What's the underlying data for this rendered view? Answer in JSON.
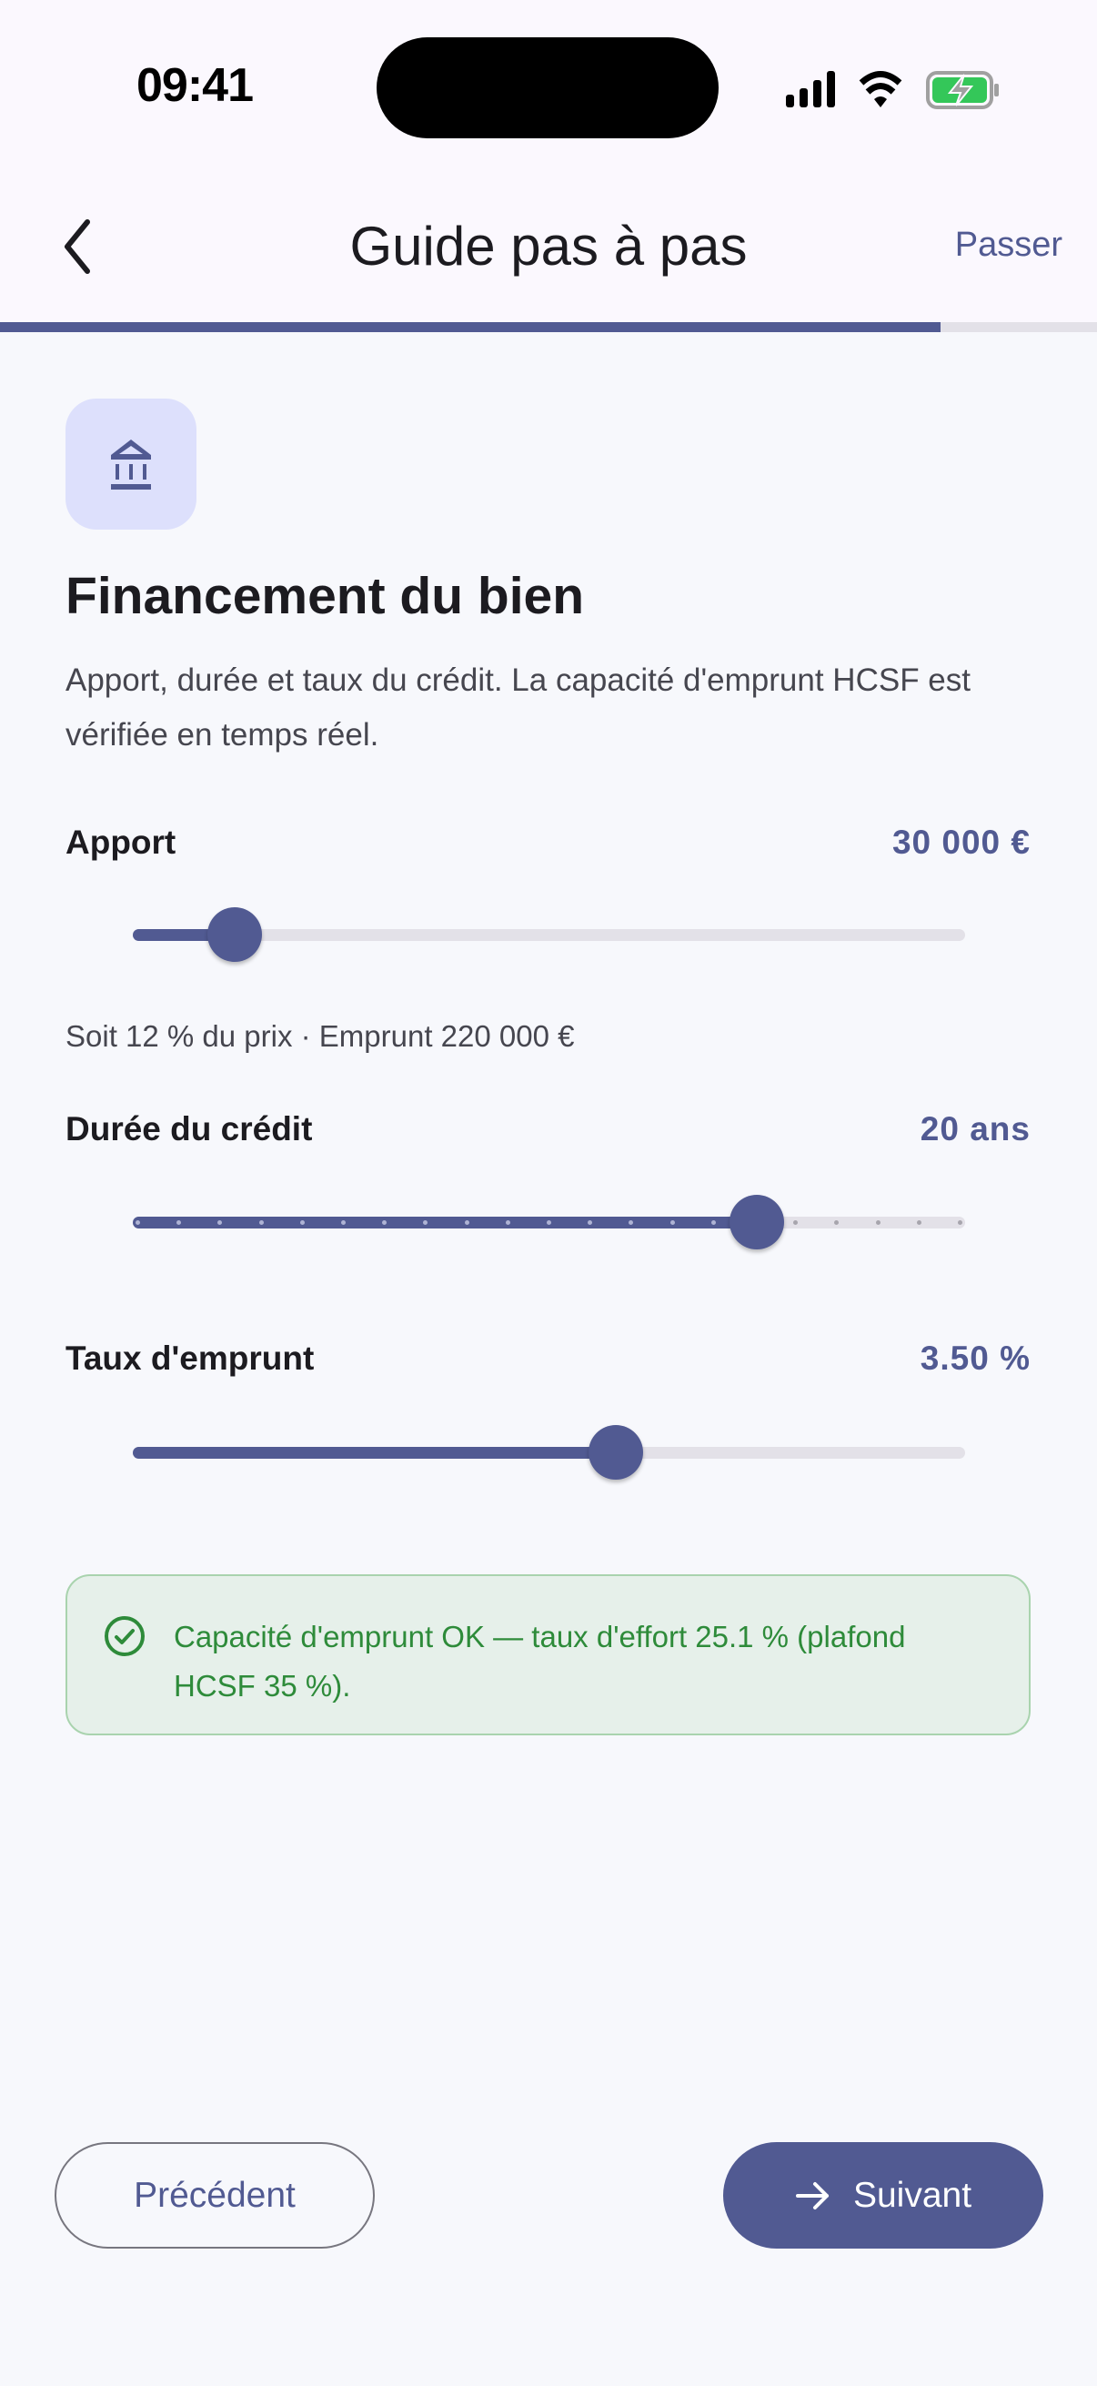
{
  "status_bar": {
    "time": "09:41",
    "icons": [
      "signal-icon",
      "wifi-icon",
      "battery-charging-icon"
    ]
  },
  "header": {
    "title": "Guide pas à pas",
    "skip_label": "Passer",
    "back_icon": "chevron-left-icon",
    "progress": 0.857
  },
  "step": {
    "icon": "bank-icon",
    "title": "Financement du bien",
    "description": "Apport, durée et taux du crédit. La capacité d'emprunt HCSF est vérifiée en temps réel."
  },
  "fields": {
    "apport": {
      "label": "Apport",
      "value": "30 000 €",
      "slider_fraction": 0.122,
      "note": "Soit 12 % du prix · Emprunt 220 000 €"
    },
    "duree": {
      "label": "Durée du crédit",
      "value": "20 ans",
      "slider_fraction": 0.75,
      "steps": 20
    },
    "taux": {
      "label": "Taux d'emprunt",
      "value": "3.50 %",
      "slider_fraction": 0.58
    }
  },
  "alert": {
    "icon": "check-circle-icon",
    "text": "Capacité d'emprunt OK — taux d'effort 25.1 % (plafond HCSF 35 %).",
    "color": "#2e8b3a"
  },
  "footer": {
    "prev_label": "Précédent",
    "next_label": "Suivant",
    "next_icon": "arrow-right-icon"
  },
  "colors": {
    "primary": "#515a92",
    "success": "#2e8b3a"
  }
}
